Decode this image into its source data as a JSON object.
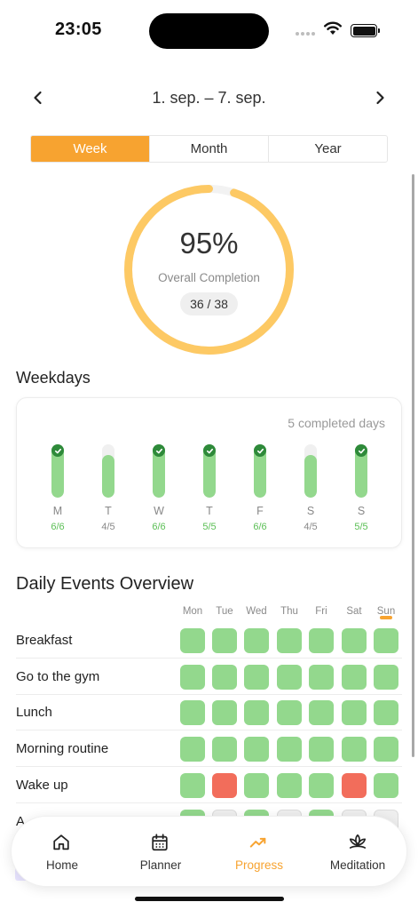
{
  "status": {
    "time": "23:05"
  },
  "date_nav": {
    "range": "1. sep. – 7. sep."
  },
  "segments": [
    {
      "label": "Week",
      "active": true
    },
    {
      "label": "Month",
      "active": false
    },
    {
      "label": "Year",
      "active": false
    }
  ],
  "overview": {
    "percent": "95%",
    "label": "Overall Completion",
    "count": "36 / 38",
    "progress": 0.95,
    "ring_color": "#fdc964"
  },
  "weekdays": {
    "title": "Weekdays",
    "completed_text": "5 completed days",
    "days": [
      {
        "day": "M",
        "count": "6/6",
        "ratio": 1.0,
        "done": true
      },
      {
        "day": "T",
        "count": "4/5",
        "ratio": 0.8,
        "done": false
      },
      {
        "day": "W",
        "count": "6/6",
        "ratio": 1.0,
        "done": true
      },
      {
        "day": "T",
        "count": "5/5",
        "ratio": 1.0,
        "done": true
      },
      {
        "day": "F",
        "count": "6/6",
        "ratio": 1.0,
        "done": true
      },
      {
        "day": "S",
        "count": "4/5",
        "ratio": 0.8,
        "done": false
      },
      {
        "day": "S",
        "count": "5/5",
        "ratio": 1.0,
        "done": true
      }
    ]
  },
  "events": {
    "title": "Daily Events Overview",
    "columns": [
      "Mon",
      "Tue",
      "Wed",
      "Thu",
      "Fri",
      "Sat",
      "Sun"
    ],
    "rows": [
      {
        "name": "Breakfast",
        "status": [
          "done",
          "done",
          "done",
          "done",
          "done",
          "done",
          "done"
        ]
      },
      {
        "name": "Go to the gym",
        "status": [
          "done",
          "done",
          "done",
          "done",
          "done",
          "done",
          "done"
        ]
      },
      {
        "name": "Lunch",
        "status": [
          "done",
          "done",
          "done",
          "done",
          "done",
          "done",
          "done"
        ]
      },
      {
        "name": "Morning routine",
        "status": [
          "done",
          "done",
          "done",
          "done",
          "done",
          "done",
          "done"
        ]
      },
      {
        "name": "Wake up",
        "status": [
          "done",
          "miss",
          "done",
          "done",
          "done",
          "miss",
          "done"
        ]
      },
      {
        "name": "A",
        "status": [
          "done",
          "empty",
          "done",
          "empty",
          "done",
          "empty",
          "empty"
        ]
      }
    ]
  },
  "tabs": [
    {
      "label": "Home",
      "icon": "home-icon",
      "active": false
    },
    {
      "label": "Planner",
      "icon": "calendar-icon",
      "active": false
    },
    {
      "label": "Progress",
      "icon": "trend-icon",
      "active": true
    },
    {
      "label": "Meditation",
      "icon": "lotus-icon",
      "active": false
    }
  ],
  "colors": {
    "accent": "#f7a330",
    "done": "#93d88d",
    "miss": "#f26d5b",
    "check": "#2e8a3a"
  }
}
